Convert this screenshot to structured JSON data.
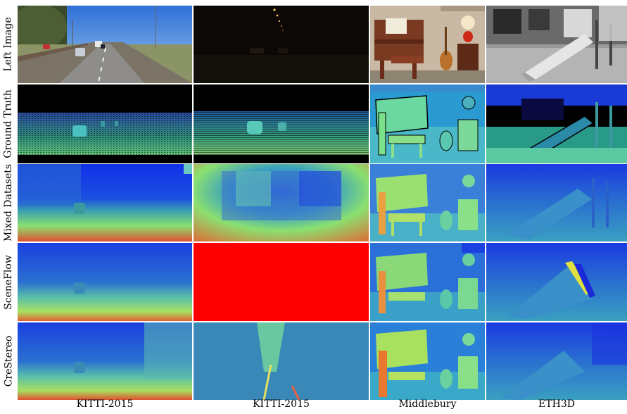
{
  "figure": {
    "row_labels": [
      "Left Image",
      "Ground Truth",
      "Mixed Datasets",
      "SceneFlow",
      "CreStereo"
    ],
    "column_labels": [
      "KITTI-2015",
      "KITTI-2015",
      "Middlebury",
      "ETH3D"
    ]
  }
}
